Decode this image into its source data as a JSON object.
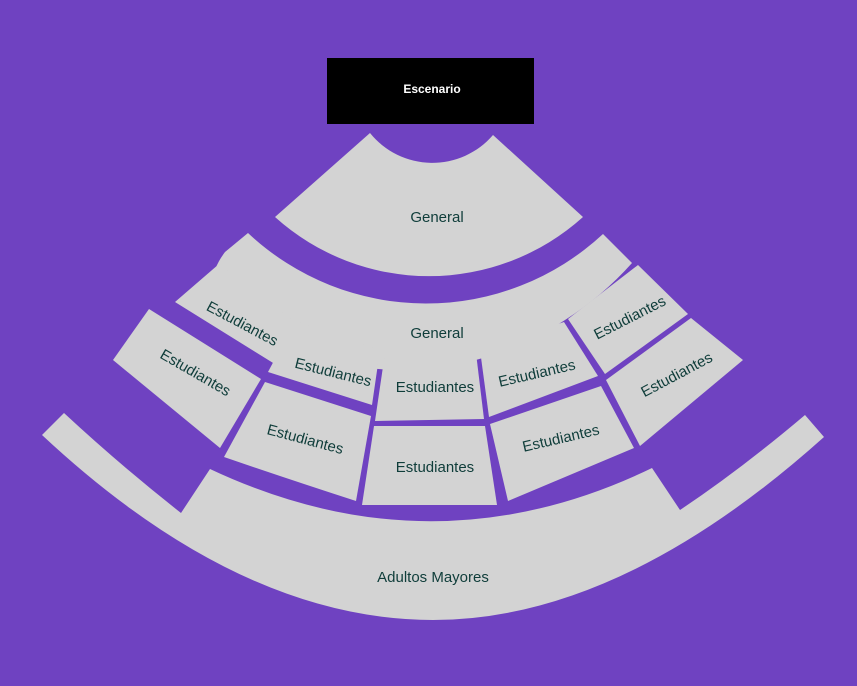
{
  "colors": {
    "background": "#6f42c1",
    "section_fill": "#d3d3d3",
    "stage_fill": "#000000",
    "label_text": "#0f3d3a",
    "stage_text": "#ffffff"
  },
  "stage": {
    "label": "Escenario"
  },
  "sections": {
    "general_front": "General",
    "general_ring": "General",
    "students_r1_c1": "Estudiantes",
    "students_r1_c2": "Estudiantes",
    "students_r1_c3": "Estudiantes",
    "students_r1_c4": "Estudiantes",
    "students_r1_c5": "Estudiantes",
    "students_r2_c1": "Estudiantes",
    "students_r2_c2": "Estudiantes",
    "students_r2_c3": "Estudiantes",
    "students_r2_c4": "Estudiantes",
    "students_r2_c5": "Estudiantes",
    "seniors": "Adultos Mayores"
  }
}
